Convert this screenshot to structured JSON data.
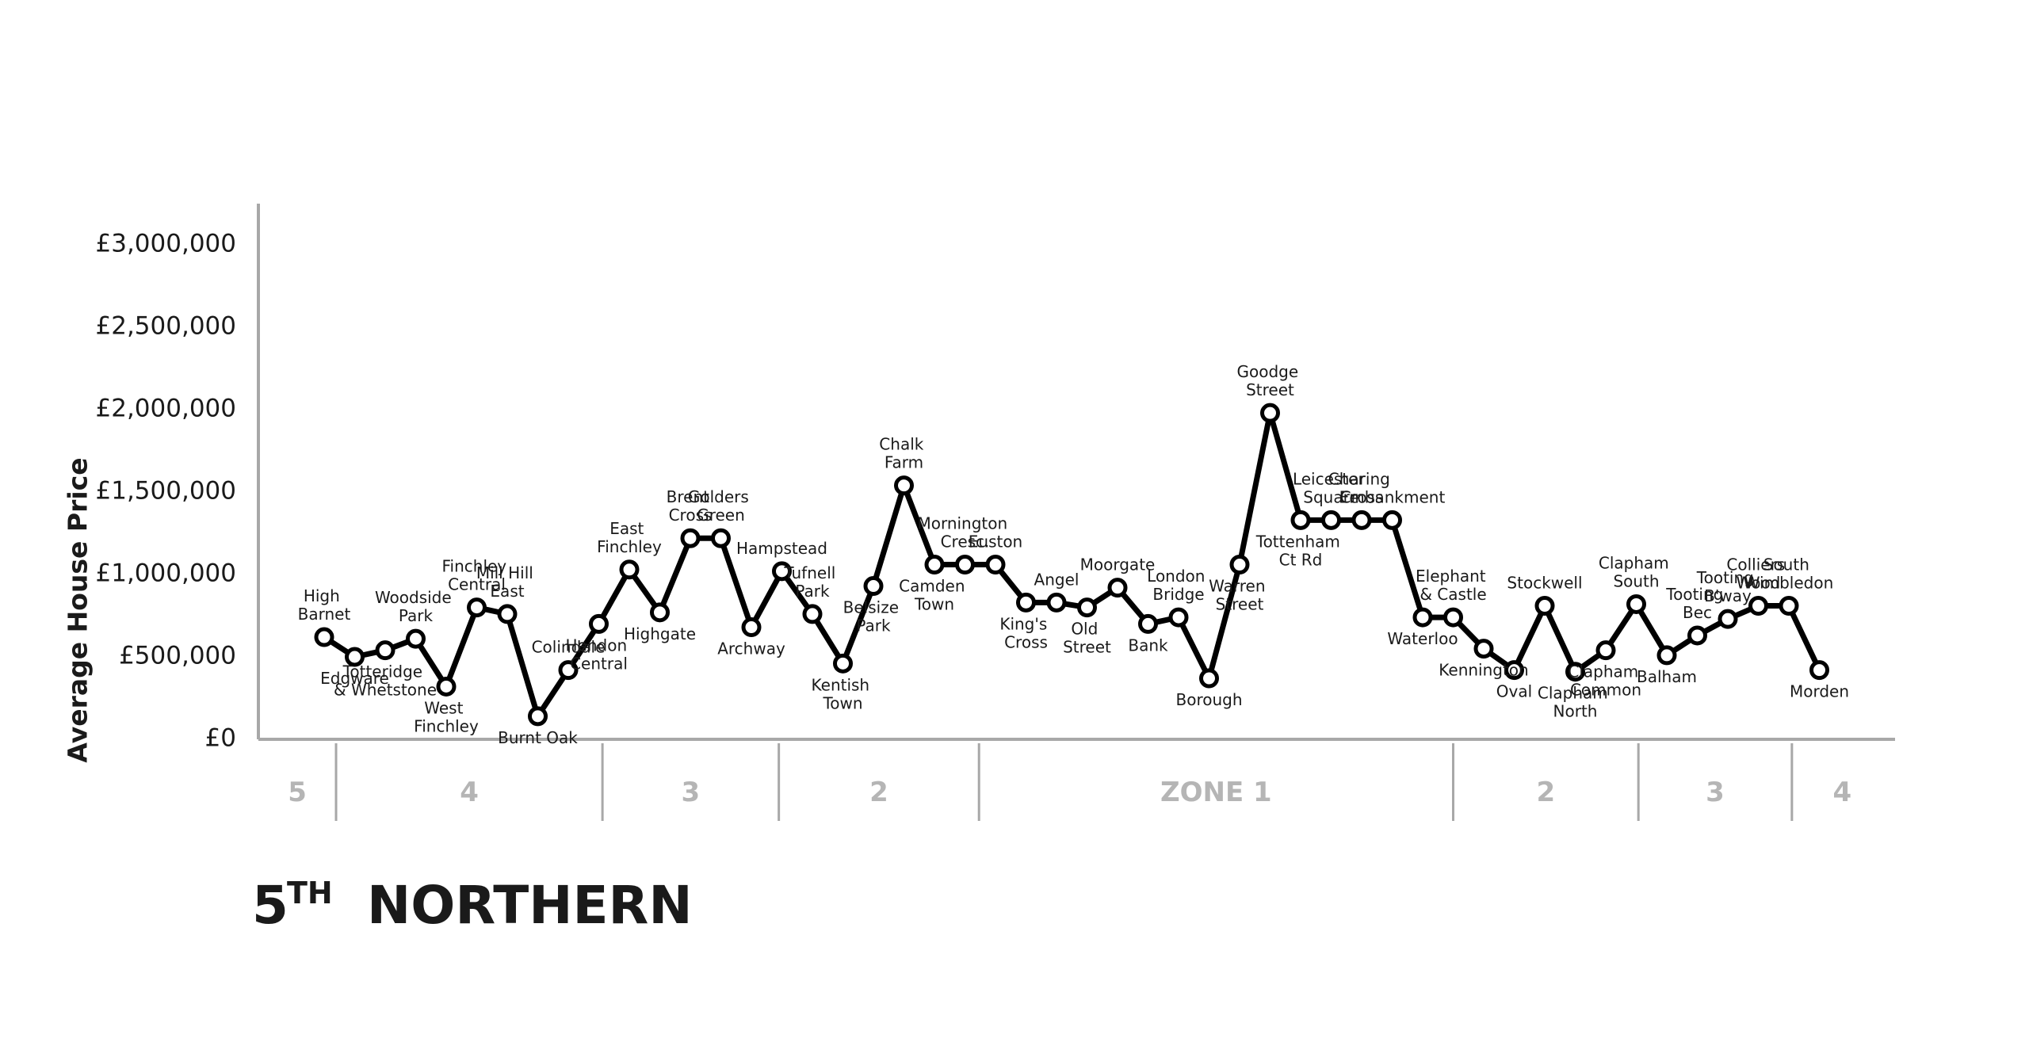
{
  "chart_data": {
    "type": "line",
    "rank": "5",
    "rank_suffix": "TH",
    "title": "NORTHERN",
    "y_label": "Average House Price",
    "color": "#000000",
    "ylim": [
      0,
      3250000
    ],
    "yticks": [
      {
        "value": 0,
        "label": "£0"
      },
      {
        "value": 500000,
        "label": "£500,000"
      },
      {
        "value": 1000000,
        "label": "£1,000,000"
      },
      {
        "value": 1500000,
        "label": "£1,500,000"
      },
      {
        "value": 2000000,
        "label": "£2,000,000"
      },
      {
        "value": 2500000,
        "label": "£2,500,000"
      },
      {
        "value": 3000000,
        "label": "£3,000,000"
      }
    ],
    "categories": [
      "High Barnet",
      "Edgware",
      "Totteridge & Whetstone",
      "Woodside Park",
      "West Finchley",
      "Finchley Central",
      "Mill Hill East",
      "Burnt Oak",
      "Colindale",
      "Hendon Central",
      "East Finchley",
      "Highgate",
      "Brent Cross",
      "Golders Green",
      "Archway",
      "Hampstead",
      "Tufnell Park",
      "Kentish Town",
      "Belsize Park",
      "Chalk Farm",
      "Camden Town",
      "Mornington Cresc.",
      "Euston",
      "King's Cross",
      "Angel",
      "Old Street",
      "Moorgate",
      "Bank",
      "London Bridge",
      "Borough",
      "Warren Street",
      "Goodge Street",
      "Tottenham Ct Rd",
      "Leicester Square",
      "Charing Cross",
      "Embankment",
      "Waterloo",
      "Elephant & Castle",
      "Kennington",
      "Oval",
      "Stockwell",
      "Clapham North",
      "Clapham Common",
      "Clapham South",
      "Balham",
      "Tooting Bec",
      "Tooting B'way",
      "Colliers Wood",
      "South Wimbledon",
      "Morden"
    ],
    "values": [
      620000,
      500000,
      540000,
      610000,
      320000,
      800000,
      760000,
      140000,
      420000,
      700000,
      1030000,
      770000,
      1220000,
      1220000,
      680000,
      1020000,
      760000,
      460000,
      930000,
      1540000,
      1060000,
      1060000,
      1060000,
      830000,
      830000,
      800000,
      920000,
      700000,
      740000,
      370000,
      1060000,
      1980000,
      1330000,
      1330000,
      1330000,
      1330000,
      740000,
      740000,
      550000,
      420000,
      810000,
      410000,
      540000,
      820000,
      510000,
      630000,
      730000,
      810000,
      810000,
      420000
    ],
    "zones": [
      "5",
      "4",
      "3",
      "2",
      "ZONE 1",
      "2",
      "3",
      "4"
    ]
  }
}
